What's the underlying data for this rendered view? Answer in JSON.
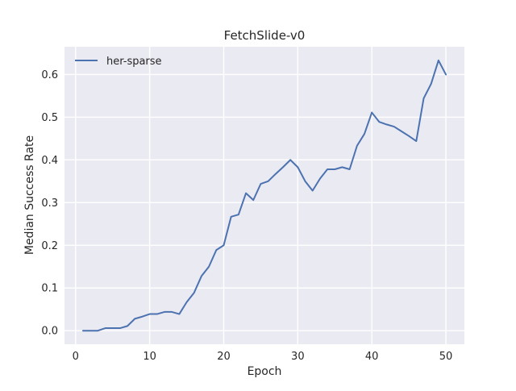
{
  "chart_data": {
    "type": "line",
    "title": "FetchSlide-v0",
    "xlabel": "Epoch",
    "ylabel": "Median Success Rate",
    "xlim": [
      -1.5,
      52.5
    ],
    "ylim": [
      -0.0317,
      0.665
    ],
    "xticks": [
      0,
      10,
      20,
      30,
      40,
      50
    ],
    "yticks": [
      0.0,
      0.1,
      0.2,
      0.3,
      0.4,
      0.5,
      0.6
    ],
    "xtick_labels": [
      "0",
      "10",
      "20",
      "30",
      "40",
      "50"
    ],
    "ytick_labels": [
      "0.0",
      "0.1",
      "0.2",
      "0.3",
      "0.4",
      "0.5",
      "0.6"
    ],
    "grid": true,
    "legend": "top-left",
    "background": "#eaeaf2",
    "series": [
      {
        "name": "her-sparse",
        "color": "#4c72b0",
        "x": [
          1,
          2,
          3,
          4,
          5,
          6,
          7,
          8,
          9,
          10,
          11,
          12,
          13,
          14,
          15,
          16,
          17,
          18,
          19,
          20,
          21,
          22,
          23,
          24,
          25,
          26,
          27,
          28,
          29,
          30,
          31,
          32,
          33,
          34,
          35,
          36,
          37,
          38,
          39,
          40,
          41,
          42,
          43,
          44,
          45,
          46,
          47,
          48,
          49,
          50
        ],
        "y": [
          0.0,
          0.0,
          0.0,
          0.006,
          0.006,
          0.006,
          0.011,
          0.028,
          0.033,
          0.039,
          0.039,
          0.044,
          0.044,
          0.039,
          0.067,
          0.089,
          0.128,
          0.15,
          0.189,
          0.2,
          0.267,
          0.272,
          0.322,
          0.306,
          0.344,
          0.35,
          0.367,
          0.383,
          0.4,
          0.383,
          0.35,
          0.328,
          0.356,
          0.378,
          0.378,
          0.383,
          0.378,
          0.433,
          0.461,
          0.511,
          0.489,
          0.483,
          0.478,
          0.467,
          0.456,
          0.444,
          0.544,
          0.578,
          0.633,
          0.6
        ]
      }
    ]
  }
}
